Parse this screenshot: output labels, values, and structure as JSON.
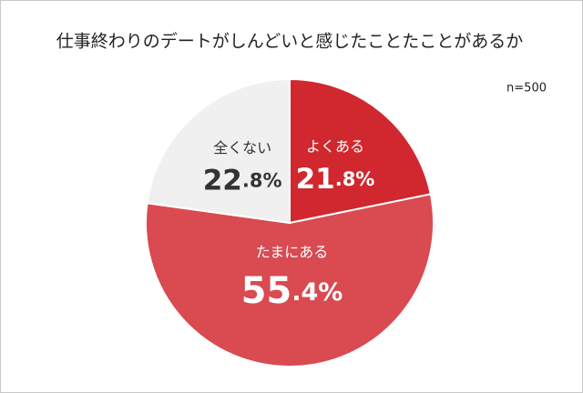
{
  "chart_data": {
    "type": "pie",
    "title": "仕事終わりのデートがしんどいと感じたことたことがあるか",
    "annotation": "n=500",
    "categories": [
      "よくある",
      "たまにある",
      "全くない"
    ],
    "values": [
      21.8,
      55.4,
      22.8
    ],
    "value_labels": [
      "21.8%",
      "55.4%",
      "22.8%"
    ],
    "colors": [
      "#d0282e",
      "#d94a51",
      "#f0f0f0"
    ]
  }
}
